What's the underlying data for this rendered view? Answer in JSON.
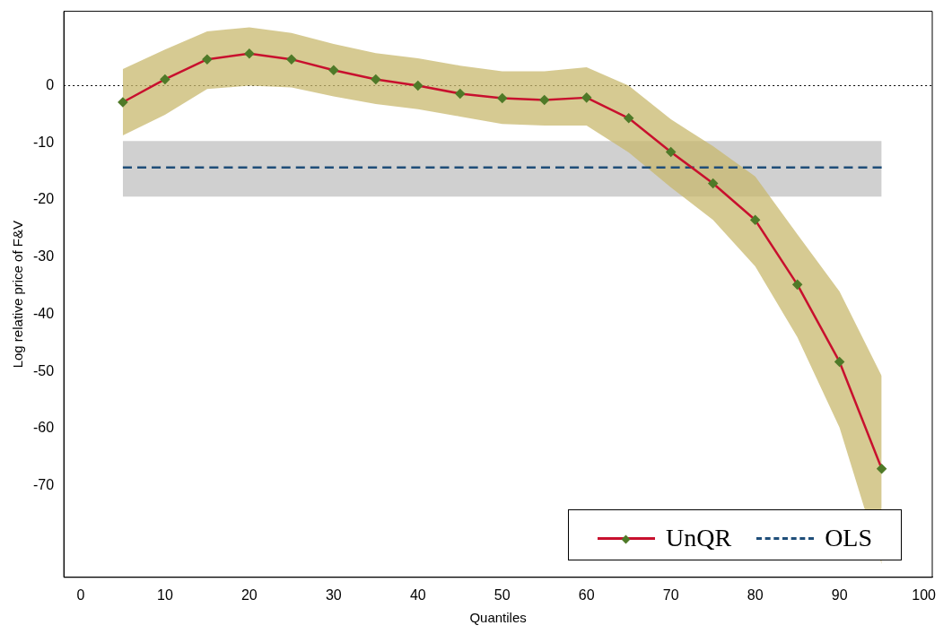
{
  "chart_data": {
    "type": "line",
    "xlabel": "Quantiles",
    "ylabel": "Log relative price of F&V",
    "xlim": [
      -2,
      101
    ],
    "xticks": [
      0,
      10,
      20,
      30,
      40,
      50,
      60,
      70,
      80,
      90,
      100
    ],
    "ylim": [
      -86,
      13
    ],
    "yticks": [
      0,
      -10,
      -20,
      -30,
      -40,
      -50,
      -60,
      -70
    ],
    "grid": false,
    "legend": "bottom right",
    "ref_lines": [
      {
        "axis": "y",
        "value": 0,
        "color": "#000000",
        "line_style": "dotted"
      }
    ],
    "series": [
      {
        "name": "UnQR",
        "color": "#c8102e",
        "marker": "diamond",
        "line_style": "solid",
        "x": [
          5,
          10,
          15,
          20,
          25,
          30,
          35,
          40,
          45,
          50,
          55,
          60,
          65,
          70,
          75,
          80,
          85,
          90,
          95
        ],
        "values": [
          -2.9,
          1.1,
          4.6,
          5.6,
          4.6,
          2.7,
          1.1,
          0,
          -1.4,
          -2.2,
          -2.5,
          -2.1,
          -5.7,
          -11.6,
          -17.1,
          -23.5,
          -34.8,
          -48.3,
          -67.0
        ],
        "lower": [
          -8.7,
          -5.1,
          -0.6,
          0,
          -0.3,
          -1.9,
          -3.2,
          -4.1,
          -5.4,
          -6.7,
          -7.0,
          -7.0,
          -11.7,
          -17.8,
          -23.5,
          -31.6,
          -44.0,
          -59.8,
          -83.7
        ],
        "upper": [
          2.9,
          6.3,
          9.5,
          10.2,
          9.2,
          7.3,
          5.7,
          4.8,
          3.5,
          2.5,
          2.5,
          3.2,
          0,
          -5.9,
          -10.6,
          -15.9,
          -26.0,
          -36.0,
          -50.8
        ]
      },
      {
        "name": "OLS",
        "color": "#1f4e79",
        "marker": "none",
        "line_style": "dashed",
        "x": [
          5,
          95
        ],
        "values": [
          -14.3,
          -14.3
        ],
        "lower": [
          -19.4,
          -19.4
        ],
        "upper": [
          -9.7,
          -9.7
        ]
      }
    ]
  }
}
